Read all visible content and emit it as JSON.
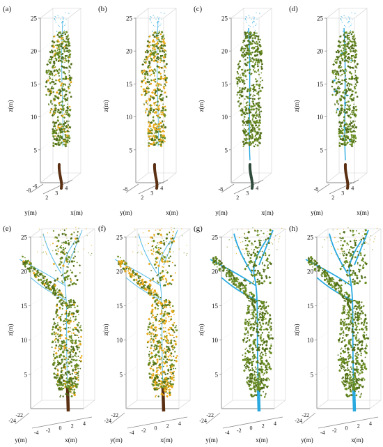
{
  "panels": [
    {
      "label": "(a)",
      "row": "top",
      "mode": "a",
      "z_ticks": [
        "5",
        "10",
        "15",
        "20",
        "25"
      ],
      "y_ticks": [
        "-6",
        "-8"
      ],
      "x_ticks": [
        "2",
        "3",
        "4"
      ],
      "ylabel": "y(m)",
      "xlabel": "x(m)",
      "zlabel": "z(m)"
    },
    {
      "label": "(b)",
      "row": "top",
      "mode": "b",
      "z_ticks": [
        "5",
        "10",
        "15",
        "20",
        "25"
      ],
      "y_ticks": [
        "-8"
      ],
      "x_ticks": [
        "2",
        "3",
        "4"
      ],
      "ylabel": "y(m)",
      "xlabel": "x(m)",
      "zlabel": "z(m)"
    },
    {
      "label": "(c)",
      "row": "top",
      "mode": "c",
      "z_ticks": [
        "5",
        "10",
        "15",
        "20",
        "25"
      ],
      "y_ticks": [
        "-8"
      ],
      "x_ticks": [
        "2",
        "3",
        "4"
      ],
      "ylabel": "y(m)",
      "xlabel": "x(m)",
      "zlabel": "z(m)"
    },
    {
      "label": "(d)",
      "row": "top",
      "mode": "d",
      "z_ticks": [
        "5",
        "10",
        "15",
        "20",
        "25"
      ],
      "y_ticks": [
        "-8"
      ],
      "x_ticks": [
        "2",
        "3",
        "4"
      ],
      "ylabel": "y(m)",
      "xlabel": "x(m)",
      "zlabel": "z(m)"
    },
    {
      "label": "(e)",
      "row": "bottom",
      "mode": "a",
      "z_ticks": [
        "5",
        "10",
        "15",
        "20",
        "25"
      ],
      "y_ticks": [
        "-22",
        "-24"
      ],
      "x_ticks": [
        "-4",
        "-2",
        "0",
        "2",
        "4"
      ],
      "ylabel": "y(m)",
      "xlabel": "x(m)",
      "zlabel": "z(m)"
    },
    {
      "label": "(f)",
      "row": "bottom",
      "mode": "b",
      "z_ticks": [
        "5",
        "10",
        "15",
        "20",
        "25"
      ],
      "y_ticks": [
        "-22",
        "-24"
      ],
      "x_ticks": [
        "-4",
        "-2",
        "0",
        "2",
        "4"
      ],
      "ylabel": "y(m)",
      "xlabel": "x(m)",
      "zlabel": "z(m)"
    },
    {
      "label": "(g)",
      "row": "bottom",
      "mode": "c",
      "z_ticks": [
        "5",
        "10",
        "15",
        "20",
        "25"
      ],
      "y_ticks": [
        "-22",
        "-24"
      ],
      "x_ticks": [
        "-4",
        "-2",
        "0",
        "2",
        "4"
      ],
      "ylabel": "y(m)",
      "xlabel": "x(m)",
      "zlabel": "z(m)"
    },
    {
      "label": "(h)",
      "row": "bottom",
      "mode": "d",
      "z_ticks": [
        "5",
        "10",
        "15",
        "20",
        "25"
      ],
      "y_ticks": [
        "-22",
        "-24"
      ],
      "x_ticks": [
        "-4",
        "-2",
        "0",
        "2",
        "4"
      ],
      "ylabel": "y(m)",
      "xlabel": "x(m)",
      "zlabel": "z(m)"
    }
  ],
  "colors": {
    "leaf": "#6b8e23",
    "leaf_dark": "#4e6b17",
    "leaf_orange": "#e6a817",
    "wood_blue": "#29a9e0",
    "trunk_brown": "#5a2f12",
    "trunk_dark": "#2f3a2a",
    "axis": "#8a8a8a",
    "grid": "#d0d0d0"
  }
}
